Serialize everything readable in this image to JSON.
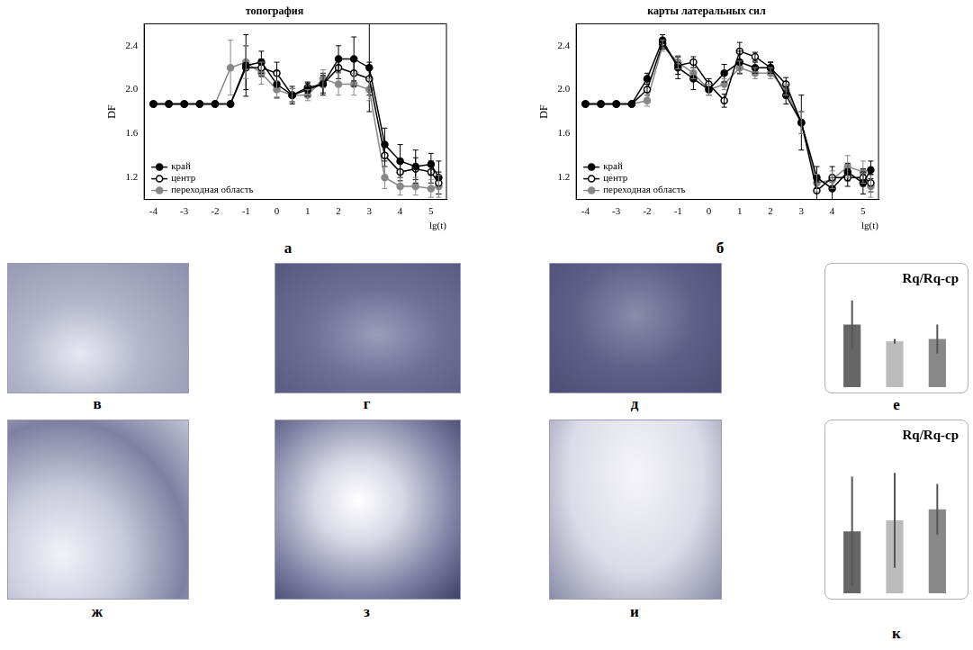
{
  "chart_data": [
    {
      "type": "line",
      "panel": "а",
      "title": "топография",
      "x_label": "lg(t)",
      "y_label": "DF",
      "x": [
        -4,
        -3.5,
        -3,
        -2.5,
        -2,
        -1.5,
        -1,
        -0.5,
        0,
        0.5,
        1,
        1.5,
        2,
        2.5,
        3,
        3.5,
        4,
        4.5,
        5,
        5.25
      ],
      "xlim": [
        -4.3,
        5.5
      ],
      "xticks": [
        -4,
        -3,
        -2,
        -1,
        0,
        1,
        2,
        3,
        4,
        5
      ],
      "ylim": [
        1.0,
        2.6
      ],
      "yticks": [
        1.2,
        1.6,
        {
          "value": 2,
          "label": "2.0"
        },
        2.4
      ],
      "legend": "lower left",
      "series": [
        {
          "name": "край",
          "color": "#000000",
          "marker": "circle",
          "line_style": "solid",
          "values": [
            1.87,
            1.87,
            1.87,
            1.87,
            1.87,
            1.87,
            2.22,
            2.25,
            2.05,
            1.95,
            2.0,
            2.05,
            2.28,
            2.28,
            2.2,
            1.5,
            1.35,
            1.3,
            1.32,
            1.2
          ],
          "errors": [
            null,
            null,
            null,
            null,
            null,
            null,
            0.28,
            0.1,
            0.12,
            0.08,
            0.06,
            0.1,
            0.12,
            0.2,
            0.4,
            0.15,
            0.15,
            0.15,
            0.1,
            0.15
          ]
        },
        {
          "name": "центр",
          "color": "#000000",
          "marker": "open_circle",
          "line_style": "solid",
          "values": [
            1.87,
            1.87,
            1.87,
            1.87,
            1.87,
            1.87,
            2.2,
            2.2,
            2.15,
            1.95,
            2.02,
            2.05,
            2.2,
            2.15,
            2.1,
            1.4,
            1.25,
            1.28,
            1.25,
            1.15
          ],
          "errors": [
            null,
            null,
            null,
            null,
            null,
            null,
            0.2,
            0.08,
            0.1,
            0.06,
            0.05,
            0.08,
            0.1,
            0.12,
            0.15,
            0.1,
            0.08,
            0.1,
            0.1,
            0.1
          ]
        },
        {
          "name": "переходная область",
          "color": "#888888",
          "marker": "circle",
          "line_style": "solid",
          "values": [
            1.87,
            1.87,
            1.87,
            1.87,
            1.87,
            2.2,
            2.25,
            2.15,
            2.0,
            1.95,
            1.95,
            2.1,
            2.05,
            2.05,
            2.0,
            1.2,
            1.12,
            1.12,
            1.1,
            1.12
          ],
          "errors": [
            null,
            null,
            null,
            null,
            null,
            0.25,
            0.15,
            0.1,
            0.08,
            0.06,
            0.05,
            0.08,
            0.1,
            0.1,
            0.1,
            0.1,
            0.08,
            0.08,
            0.08,
            0.1
          ]
        }
      ]
    },
    {
      "type": "line",
      "panel": "б",
      "title": "карты латеральных сил",
      "x_label": "lg(t)",
      "y_label": "DF",
      "x": [
        -4,
        -3.5,
        -3,
        -2.5,
        -2,
        -1.5,
        -1,
        -0.5,
        0,
        0.5,
        1,
        1.5,
        2,
        2.5,
        3,
        3.5,
        4,
        4.5,
        5,
        5.25
      ],
      "xlim": [
        -4.3,
        5.5
      ],
      "xticks": [
        -4,
        -3,
        -2,
        -1,
        0,
        1,
        2,
        3,
        4,
        5
      ],
      "ylim": [
        1.0,
        2.6
      ],
      "yticks": [
        1.2,
        1.6,
        {
          "value": 2,
          "label": "2.0"
        },
        2.4
      ],
      "legend": "lower left",
      "series": [
        {
          "name": "край",
          "color": "#000000",
          "marker": "circle",
          "line_style": "solid",
          "values": [
            1.87,
            1.87,
            1.87,
            1.87,
            2.1,
            2.45,
            2.2,
            2.1,
            2.0,
            2.15,
            2.25,
            2.2,
            2.2,
            1.95,
            1.7,
            1.2,
            1.1,
            1.25,
            1.15,
            1.27
          ],
          "errors": [
            null,
            null,
            null,
            null,
            0.05,
            0.05,
            0.1,
            0.1,
            0.05,
            0.08,
            0.1,
            0.05,
            0.05,
            0.08,
            0.25,
            0.1,
            0.1,
            0.08,
            0.1,
            0.08
          ]
        },
        {
          "name": "центр",
          "color": "#000000",
          "marker": "open_circle",
          "line_style": "solid",
          "values": [
            1.87,
            1.87,
            1.87,
            1.87,
            2.0,
            2.42,
            2.22,
            2.25,
            2.05,
            1.9,
            2.35,
            2.3,
            2.2,
            2.05,
            1.7,
            1.08,
            1.2,
            1.2,
            1.2,
            1.15
          ],
          "errors": [
            null,
            null,
            null,
            null,
            0.05,
            0.05,
            0.08,
            0.05,
            0.05,
            0.06,
            0.08,
            0.04,
            0.05,
            0.06,
            0.1,
            0.08,
            0.1,
            0.08,
            0.08,
            0.08
          ]
        },
        {
          "name": "переходная область",
          "color": "#888888",
          "marker": "circle",
          "line_style": "solid",
          "values": [
            1.87,
            1.87,
            1.87,
            1.87,
            1.9,
            2.4,
            2.25,
            2.15,
            2.0,
            2.05,
            2.2,
            2.15,
            2.15,
            2.0,
            1.7,
            1.15,
            1.18,
            1.3,
            1.25,
            1.12
          ],
          "errors": [
            null,
            null,
            null,
            null,
            0.05,
            0.05,
            0.06,
            0.05,
            0.05,
            0.05,
            0.06,
            0.05,
            0.05,
            0.05,
            0.1,
            0.08,
            0.08,
            0.1,
            0.1,
            0.1
          ]
        }
      ]
    },
    {
      "type": "bar",
      "panel": "е",
      "title": "Rq/Rq-ср",
      "tick_labels": false,
      "categories": [
        null,
        null,
        null
      ],
      "values": [
        1.3,
        0.95,
        1.0
      ],
      "errors": [
        0.5,
        0.05,
        0.3
      ],
      "colors": [
        "#666666",
        "#bbbbbb",
        "#888888"
      ],
      "ylim": [
        0,
        2
      ]
    },
    {
      "type": "bar",
      "panel": "к",
      "title": "Rq/Rq-ср",
      "tick_labels": false,
      "categories": [
        null,
        null,
        null
      ],
      "values": [
        0.85,
        1.0,
        1.15
      ],
      "errors": [
        0.75,
        0.65,
        0.35
      ],
      "colors": [
        "#666666",
        "#bbbbbb",
        "#888888"
      ],
      "ylim": [
        0,
        2
      ]
    }
  ],
  "image_panels": [
    "в",
    "г",
    "д",
    "ж",
    "з",
    "и"
  ]
}
